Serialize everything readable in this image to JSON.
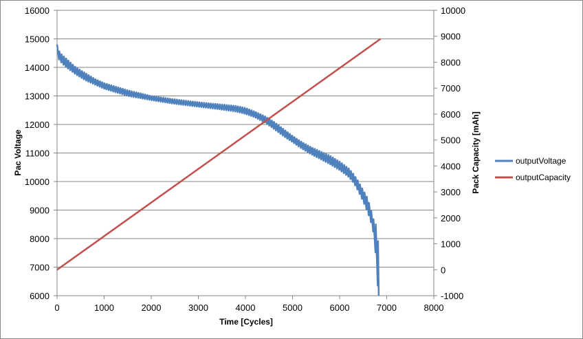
{
  "chart_data": {
    "type": "line",
    "title": "",
    "xlabel": "Time [Cycles]",
    "ylabel_left": "Pac Voltage",
    "ylabel_right": "Pack Capacity [mAh]",
    "xlim": [
      0,
      8000
    ],
    "ylim_left": [
      6000,
      16000
    ],
    "ylim_right": [
      -1000,
      10000
    ],
    "x_ticks": [
      "0",
      "1000",
      "2000",
      "3000",
      "4000",
      "5000",
      "6000",
      "7000",
      "8000"
    ],
    "y_left_ticks": [
      "6000",
      "7000",
      "8000",
      "9000",
      "10000",
      "11000",
      "12000",
      "13000",
      "14000",
      "15000",
      "16000"
    ],
    "y_right_ticks": [
      "-1000",
      "0",
      "1000",
      "2000",
      "3000",
      "4000",
      "5000",
      "6000",
      "7000",
      "8000",
      "9000",
      "10000"
    ],
    "grid": "horizontal",
    "legend_position": "right",
    "series": [
      {
        "name": "outputVoltage",
        "axis": "left",
        "color": "#4F81BD",
        "style": "sawtooth envelope",
        "x": [
          0,
          50,
          100,
          200,
          400,
          600,
          800,
          1000,
          1500,
          2000,
          2500,
          3000,
          3500,
          3800,
          4000,
          4200,
          4400,
          4600,
          4800,
          5000,
          5200,
          5400,
          5600,
          5800,
          6000,
          6200,
          6300,
          6400,
          6500,
          6600,
          6700,
          6750,
          6800,
          6830
        ],
        "upper": [
          14800,
          14550,
          14450,
          14300,
          14000,
          13800,
          13600,
          13450,
          13200,
          13000,
          12880,
          12780,
          12700,
          12650,
          12580,
          12450,
          12300,
          12100,
          11850,
          11600,
          11380,
          11200,
          11050,
          10900,
          10700,
          10450,
          10250,
          10000,
          9700,
          9400,
          8800,
          8500,
          8500,
          7400
        ],
        "lower": [
          14400,
          14250,
          14150,
          14000,
          13750,
          13550,
          13400,
          13250,
          13000,
          12850,
          12720,
          12620,
          12520,
          12450,
          12370,
          12250,
          12080,
          11850,
          11600,
          11380,
          11150,
          10950,
          10780,
          10600,
          10400,
          10150,
          9950,
          9650,
          9300,
          8900,
          8400,
          7800,
          6500,
          6000
        ]
      },
      {
        "name": "outputCapacity",
        "axis": "right",
        "color": "#C0504D",
        "x": [
          0,
          6870
        ],
        "values": [
          0,
          8900
        ]
      }
    ]
  }
}
